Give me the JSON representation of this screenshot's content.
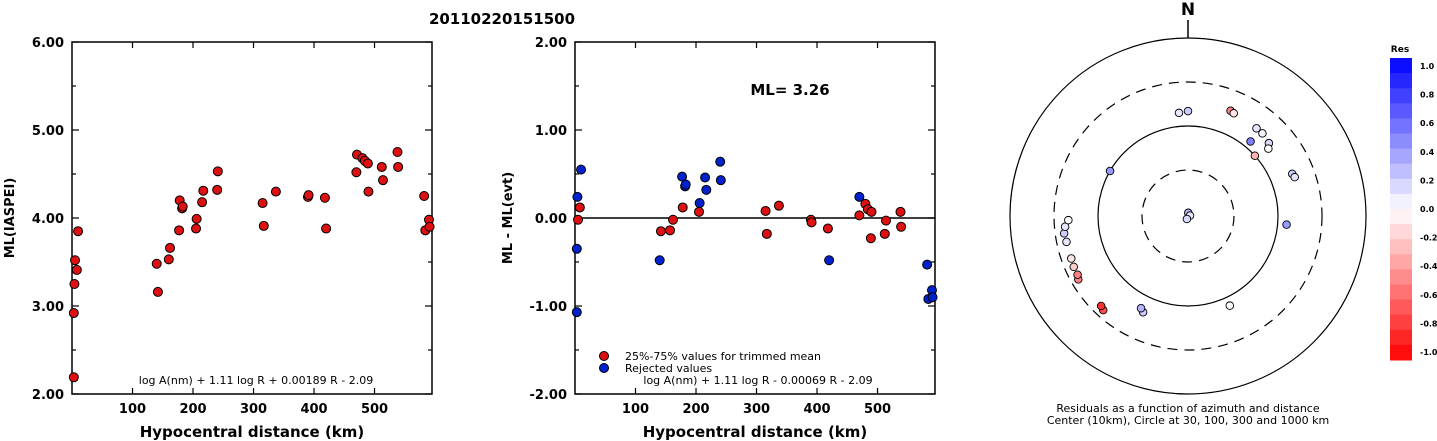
{
  "title": "20110220151500",
  "chart_data": [
    {
      "type": "scatter",
      "xlabel": "Hypocentral distance (km)",
      "ylabel": "ML(IASPEI)",
      "xlim": [
        0,
        595
      ],
      "ylim": [
        2.0,
        6.0
      ],
      "xticks": [
        "100",
        "200",
        "300",
        "400",
        "500"
      ],
      "yticks": [
        "2.00",
        "3.00",
        "4.00",
        "5.00",
        "6.00"
      ],
      "formula": "log A(nm) + 1.11 log R + 0.00189 R - 2.09",
      "series": [
        {
          "color": "#dd1111",
          "points": [
            [
              3,
              2.92
            ],
            [
              3,
              2.19
            ],
            [
              4,
              3.25
            ],
            [
              5,
              3.52
            ],
            [
              8,
              3.41
            ],
            [
              10,
              3.85
            ],
            [
              140,
              3.48
            ],
            [
              142,
              3.16
            ],
            [
              160,
              3.53
            ],
            [
              162,
              3.66
            ],
            [
              177,
              3.86
            ],
            [
              178,
              4.2
            ],
            [
              182,
              4.11
            ],
            [
              183,
              4.13
            ],
            [
              205,
              3.88
            ],
            [
              206,
              3.99
            ],
            [
              215,
              4.18
            ],
            [
              217,
              4.31
            ],
            [
              240,
              4.32
            ],
            [
              241,
              4.53
            ],
            [
              315,
              4.17
            ],
            [
              317,
              3.91
            ],
            [
              337,
              4.3
            ],
            [
              390,
              4.24
            ],
            [
              391,
              4.26
            ],
            [
              418,
              4.23
            ],
            [
              420,
              3.88
            ],
            [
              470,
              4.52
            ],
            [
              471,
              4.72
            ],
            [
              480,
              4.68
            ],
            [
              484,
              4.65
            ],
            [
              489,
              4.62
            ],
            [
              490,
              4.3
            ],
            [
              512,
              4.58
            ],
            [
              514,
              4.43
            ],
            [
              538,
              4.75
            ],
            [
              539,
              4.58
            ],
            [
              582,
              4.25
            ],
            [
              584,
              3.86
            ],
            [
              590,
              3.98
            ],
            [
              591,
              3.9
            ]
          ]
        }
      ]
    },
    {
      "type": "scatter",
      "xlabel": "Hypocentral distance (km)",
      "ylabel": "ML - ML(evt)",
      "xlim": [
        0,
        595
      ],
      "ylim": [
        -2.0,
        2.0
      ],
      "xticks": [
        "100",
        "200",
        "300",
        "400",
        "500"
      ],
      "yticks": [
        "-2.00",
        "-1.00",
        "0.00",
        "1.00",
        "2.00"
      ],
      "annotation": "ML= 3.26",
      "formula": "log A(nm) + 1.11 log R - 0.00069 R - 2.09",
      "legend": [
        "25%-75% values for trimmed mean",
        "Rejected values"
      ],
      "series": [
        {
          "name": "25%-75% values for trimmed mean",
          "color": "#dd1111",
          "points": [
            [
              8,
              0.12
            ],
            [
              5,
              -0.02
            ],
            [
              142,
              -0.15
            ],
            [
              157,
              -0.14
            ],
            [
              162,
              -0.02
            ],
            [
              178,
              0.12
            ],
            [
              205,
              0.07
            ],
            [
              315,
              0.08
            ],
            [
              317,
              -0.18
            ],
            [
              337,
              0.14
            ],
            [
              390,
              -0.02
            ],
            [
              391,
              -0.05
            ],
            [
              418,
              -0.12
            ],
            [
              470,
              0.03
            ],
            [
              480,
              0.16
            ],
            [
              484,
              0.1
            ],
            [
              489,
              -0.23
            ],
            [
              490,
              0.07
            ],
            [
              512,
              -0.18
            ],
            [
              514,
              -0.03
            ],
            [
              538,
              0.07
            ],
            [
              539,
              -0.1
            ]
          ]
        },
        {
          "name": "Rejected values",
          "color": "#0022cc",
          "points": [
            [
              3,
              -1.07
            ],
            [
              3,
              -0.35
            ],
            [
              4,
              0.24
            ],
            [
              10,
              0.55
            ],
            [
              140,
              -0.48
            ],
            [
              177,
              0.47
            ],
            [
              182,
              0.36
            ],
            [
              183,
              0.38
            ],
            [
              206,
              0.17
            ],
            [
              215,
              0.46
            ],
            [
              217,
              0.32
            ],
            [
              240,
              0.64
            ],
            [
              241,
              0.43
            ],
            [
              420,
              -0.48
            ],
            [
              470,
              0.24
            ],
            [
              582,
              -0.53
            ],
            [
              584,
              -0.92
            ],
            [
              590,
              -0.82
            ],
            [
              591,
              -0.9
            ]
          ]
        }
      ]
    },
    {
      "type": "scatter",
      "subtype": "polar",
      "north_label": "N",
      "caption_line1": "Residuals as a function of azimuth and distance",
      "caption_line2": "Center (10km), Circle at 30, 100, 300 and 1000 km",
      "colorbar_title": "Res",
      "colorbar_ticks": [
        "1.0",
        "0.8",
        "0.6",
        "0.4",
        "0.2",
        "0.0",
        "-0.2",
        "-0.4",
        "-0.6",
        "-0.8",
        "-1.0"
      ],
      "points": [
        {
          "az": 5,
          "dist": 8,
          "res": 0.3
        },
        {
          "az": 80,
          "dist": 5,
          "res": 0.1
        },
        {
          "az": 200,
          "dist": 8,
          "res": 0.15
        },
        {
          "az": 355,
          "dist": 140,
          "res": 0.1
        },
        {
          "az": 0,
          "dist": 145,
          "res": 0.2
        },
        {
          "az": 22,
          "dist": 180,
          "res": -0.5
        },
        {
          "az": 24,
          "dist": 175,
          "res": -0.1
        },
        {
          "az": 38,
          "dist": 170,
          "res": 0.1
        },
        {
          "az": 42,
          "dist": 170,
          "res": 0.05
        },
        {
          "az": 48,
          "dist": 160,
          "res": 0.15
        },
        {
          "az": 40,
          "dist": 120,
          "res": 0.5
        },
        {
          "az": 50,
          "dist": 145,
          "res": 0.0
        },
        {
          "az": 48,
          "dist": 100,
          "res": -0.3
        },
        {
          "az": 68,
          "dist": 175,
          "res": 0.2
        },
        {
          "az": 70,
          "dist": 180,
          "res": 0.1
        },
        {
          "az": 95,
          "dist": 125,
          "res": 0.4
        },
        {
          "az": 155,
          "dist": 125,
          "res": 0.0
        },
        {
          "az": 205,
          "dist": 150,
          "res": 0.2
        },
        {
          "az": 207,
          "dist": 140,
          "res": 0.3
        },
        {
          "az": 222,
          "dist": 250,
          "res": -0.7
        },
        {
          "az": 224,
          "dist": 240,
          "res": -0.8
        },
        {
          "az": 240,
          "dist": 250,
          "res": -0.5
        },
        {
          "az": 242,
          "dist": 240,
          "res": -0.5
        },
        {
          "az": 246,
          "dist": 240,
          "res": -0.2
        },
        {
          "az": 250,
          "dist": 235,
          "res": -0.1
        },
        {
          "az": 258,
          "dist": 235,
          "res": 0.1
        },
        {
          "az": 262,
          "dist": 240,
          "res": 0.2
        },
        {
          "az": 265,
          "dist": 230,
          "res": 0.1
        },
        {
          "az": 268,
          "dist": 210,
          "res": 0.0
        },
        {
          "az": 300,
          "dist": 100,
          "res": 0.4
        }
      ]
    }
  ]
}
